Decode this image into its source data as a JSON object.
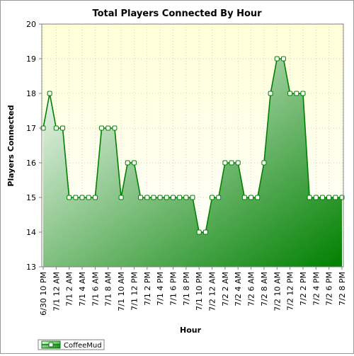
{
  "chart_data": {
    "type": "area",
    "title": "Total Players Connected By Hour",
    "xlabel": "Hour",
    "ylabel": "Players Connected",
    "ylim": [
      13,
      20
    ],
    "y_ticks": [
      13,
      14,
      15,
      16,
      17,
      18,
      19,
      20
    ],
    "grid": true,
    "legend_position": "bottom-left",
    "categories": [
      "6/30 10 PM",
      "6/30 11 PM",
      "7/1 12 AM",
      "7/1 1 AM",
      "7/1 2 AM",
      "7/1 3 AM",
      "7/1 4 AM",
      "7/1 5 AM",
      "7/1 6 AM",
      "7/1 7 AM",
      "7/1 8 AM",
      "7/1 9 AM",
      "7/1 10 AM",
      "7/1 11 AM",
      "7/1 12 PM",
      "7/1 1 PM",
      "7/1 2 PM",
      "7/1 3 PM",
      "7/1 4 PM",
      "7/1 5 PM",
      "7/1 6 PM",
      "7/1 7 PM",
      "7/1 8 PM",
      "7/1 9 PM",
      "7/1 10 PM",
      "7/1 11 PM",
      "7/2 12 AM",
      "7/2 1 AM",
      "7/2 2 AM",
      "7/2 3 AM",
      "7/2 4 AM",
      "7/2 5 AM",
      "7/2 6 AM",
      "7/2 7 AM",
      "7/2 8 AM",
      "7/2 9 AM",
      "7/2 10 AM",
      "7/2 11 AM",
      "7/2 12 PM",
      "7/2 1 PM",
      "7/2 2 PM",
      "7/2 3 PM",
      "7/2 4 PM",
      "7/2 5 PM",
      "7/2 6 PM",
      "7/2 7 PM",
      "7/2 8 PM"
    ],
    "shown_tick_labels": [
      "6/30 10 PM",
      "7/1 12 AM",
      "7/1 2 AM",
      "7/1 4 AM",
      "7/1 6 AM",
      "7/1 8 AM",
      "7/1 10 AM",
      "7/1 12 PM",
      "7/1 2 PM",
      "7/1 4 PM",
      "7/1 6 PM",
      "7/1 8 PM",
      "7/1 10 PM",
      "7/2 12 AM",
      "7/2 2 AM",
      "7/2 4 AM",
      "7/2 6 AM",
      "7/2 8 AM",
      "7/2 10 AM",
      "7/2 12 PM",
      "7/2 2 PM",
      "7/2 4 PM",
      "7/2 6 PM",
      "7/2 8 PM"
    ],
    "series": [
      {
        "name": "CoffeeMud",
        "color": "#008000",
        "values": [
          17,
          18,
          17,
          17,
          15,
          15,
          15,
          15,
          15,
          17,
          17,
          17,
          15,
          16,
          16,
          15,
          15,
          15,
          15,
          15,
          15,
          15,
          15,
          15,
          14,
          14,
          15,
          15,
          16,
          16,
          16,
          15,
          15,
          15,
          16,
          18,
          19,
          19,
          18,
          18,
          18,
          15,
          15,
          15,
          15,
          15,
          15
        ]
      }
    ],
    "colors": {
      "plot_bg_top": "#ffffd8",
      "plot_bg_bottom": "#ffffff",
      "fill_start": "#ffffff",
      "fill_end": "#008000",
      "line": "#008000",
      "marker_fill": "#ffffff",
      "grid": "#c8c8b0"
    }
  }
}
